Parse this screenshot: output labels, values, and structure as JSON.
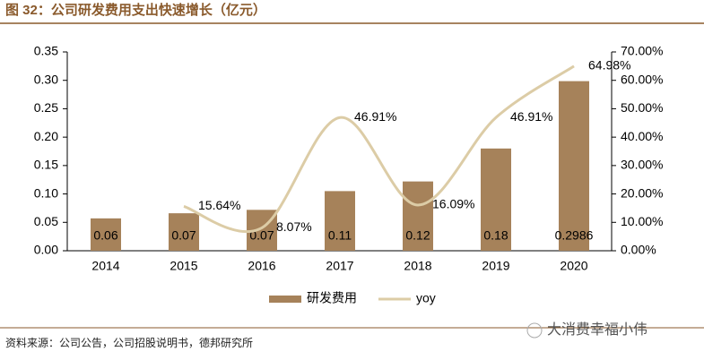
{
  "title": "图 32：公司研发费用支出快速增长（亿元）",
  "source": "资料来源：公司公告，公司招股说明书，德邦研究所",
  "watermark": "大消费幸福小伟",
  "chart_data": {
    "type": "bar-line",
    "categories": [
      "2014",
      "2015",
      "2016",
      "2017",
      "2018",
      "2019",
      "2020"
    ],
    "series": [
      {
        "name": "研发费用",
        "type": "bar",
        "color": "#a6825a",
        "values": [
          0.057,
          0.066,
          0.072,
          0.105,
          0.122,
          0.18,
          0.2986
        ],
        "value_labels": [
          "0.06",
          "0.07",
          "0.07",
          "0.11",
          "0.12",
          "0.18",
          "0.2986"
        ]
      },
      {
        "name": "yoy",
        "type": "line",
        "axis": "y2",
        "color": "#dccca6",
        "values": [
          null,
          15.64,
          8.07,
          46.91,
          16.09,
          46.91,
          64.98
        ],
        "value_labels": [
          null,
          "15.64%",
          "8.07%",
          "46.91%",
          "16.09%",
          "46.91%",
          "64.98%"
        ]
      }
    ],
    "ylim": [
      0,
      0.35
    ],
    "yticks": [
      {
        "value": 0,
        "label": "0.00"
      },
      {
        "value": 0.05,
        "label": "0.05"
      },
      {
        "value": 0.1,
        "label": "0.10"
      },
      {
        "value": 0.15,
        "label": "0.15"
      },
      {
        "value": 0.2,
        "label": "0.20"
      },
      {
        "value": 0.25,
        "label": "0.25"
      },
      {
        "value": 0.3,
        "label": "0.30"
      },
      {
        "value": 0.35,
        "label": "0.35"
      }
    ],
    "y2lim": [
      0,
      70
    ],
    "y2ticks": [
      {
        "value": 0,
        "label": "0.00%"
      },
      {
        "value": 10,
        "label": "10.00%"
      },
      {
        "value": 20,
        "label": "20.00%"
      },
      {
        "value": 30,
        "label": "30.00%"
      },
      {
        "value": 40,
        "label": "40.00%"
      },
      {
        "value": 50,
        "label": "50.00%"
      },
      {
        "value": 60,
        "label": "60.00%"
      },
      {
        "value": 70,
        "label": "70.00%"
      }
    ],
    "legend": "bottom"
  }
}
